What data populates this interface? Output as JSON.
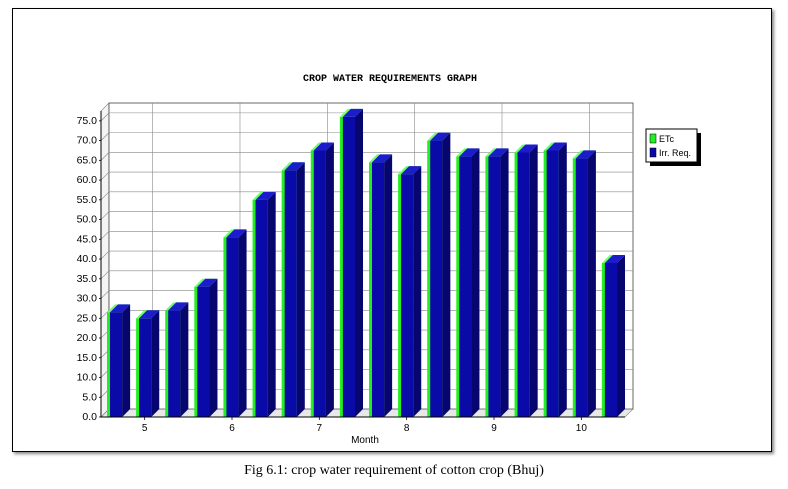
{
  "caption": "Fig 6.1: crop water requirement of cotton crop (Bhuj)",
  "chart_data": {
    "type": "bar",
    "title": "CROP WATER REQUIREMENTS GRAPH",
    "xlabel": "Month",
    "ylabel": "",
    "ylim": [
      0,
      77.5
    ],
    "yticks": [
      0.0,
      5.0,
      10.0,
      15.0,
      20.0,
      25.0,
      30.0,
      35.0,
      40.0,
      45.0,
      50.0,
      55.0,
      60.0,
      65.0,
      70.0,
      75.0
    ],
    "ytick_labels": [
      "0.0",
      "5.0",
      "10.0",
      "15.0",
      "20.0",
      "25.0",
      "30.0",
      "35.0",
      "40.0",
      "45.0",
      "50.0",
      "55.0",
      "60.0",
      "65.0",
      "70.0",
      "75.0"
    ],
    "x_tick_labels": [
      "5",
      "6",
      "7",
      "8",
      "9",
      "10"
    ],
    "x_tick_bar_positions": [
      1.0,
      4.0,
      7.0,
      10.0,
      13.0,
      16.0
    ],
    "legend_position": "right",
    "grid": true,
    "series": [
      {
        "name": "ETc",
        "color": "#22ee22",
        "values": [
          26.5,
          25.0,
          27.0,
          33.0,
          45.5,
          55.0,
          62.5,
          67.5,
          76.0,
          64.5,
          61.5,
          70.0,
          66.0,
          66.0,
          67.0,
          67.5,
          65.5,
          39.0
        ]
      },
      {
        "name": "Irr. Req.",
        "color": "#0a0aa8",
        "values": [
          26.5,
          25.0,
          27.0,
          33.0,
          45.5,
          55.0,
          62.5,
          67.5,
          76.0,
          64.5,
          61.5,
          70.0,
          66.0,
          66.0,
          67.0,
          67.5,
          65.5,
          39.0
        ]
      }
    ]
  }
}
